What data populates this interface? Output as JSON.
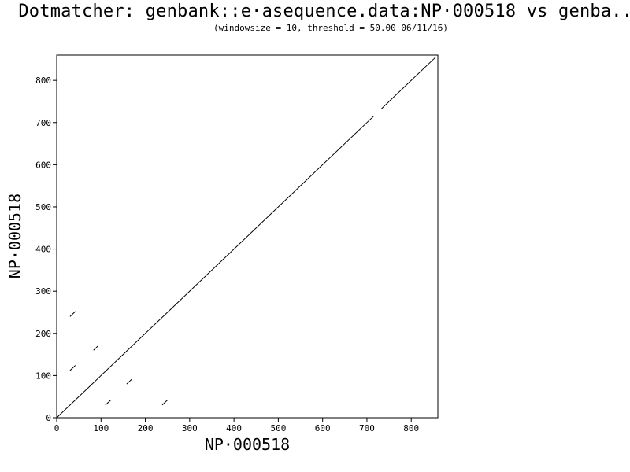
{
  "chart_data": {
    "type": "scatter",
    "title": "Dotmatcher: genbank::e·asequence.data:NP·000518 vs genba...",
    "subtitle": "(windowsize = 10, threshold = 50.00  06/11/16)",
    "xlabel": "NP·000518",
    "ylabel": "NP·000518",
    "xlim": [
      0,
      860
    ],
    "ylim": [
      0,
      860
    ],
    "xticks": [
      0,
      100,
      200,
      300,
      400,
      500,
      600,
      700,
      800
    ],
    "yticks": [
      0,
      100,
      200,
      300,
      400,
      500,
      600,
      700,
      800
    ],
    "grid": false,
    "series": [
      {
        "segments": [
          {
            "x1": 0,
            "y1": 0,
            "x2": 716,
            "y2": 716
          },
          {
            "x1": 732,
            "y1": 732,
            "x2": 855,
            "y2": 855
          },
          {
            "x1": 30,
            "y1": 240,
            "x2": 42,
            "y2": 252
          },
          {
            "x1": 30,
            "y1": 112,
            "x2": 42,
            "y2": 124
          },
          {
            "x1": 83,
            "y1": 160,
            "x2": 93,
            "y2": 170
          },
          {
            "x1": 110,
            "y1": 30,
            "x2": 122,
            "y2": 42
          },
          {
            "x1": 158,
            "y1": 80,
            "x2": 170,
            "y2": 92
          },
          {
            "x1": 238,
            "y1": 30,
            "x2": 250,
            "y2": 42
          }
        ]
      }
    ]
  }
}
